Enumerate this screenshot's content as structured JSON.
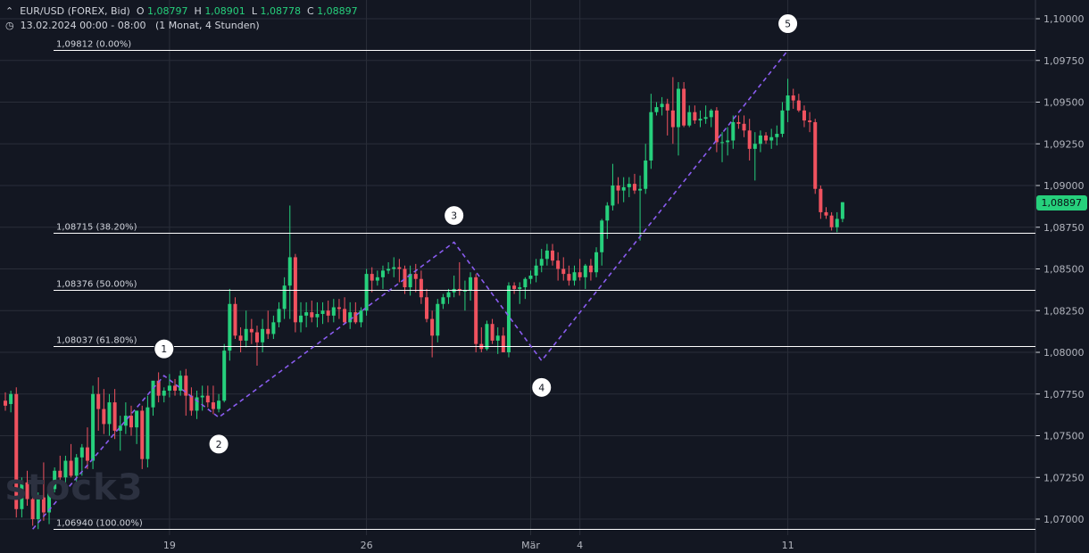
{
  "header": {
    "instrument": "EUR/USD (FOREX, Bid)",
    "o_label": "O",
    "o_value": "1,08797",
    "h_label": "H",
    "h_value": "1,08901",
    "l_label": "L",
    "l_value": "1,08778",
    "c_label": "C",
    "c_value": "1,08897",
    "timerange": "13.02.2024 00:00 - 08:00",
    "period": "(1 Monat, 4 Stunden)"
  },
  "watermark": "stock3",
  "last_price": "1,08897",
  "colors": {
    "up": "#26d07c",
    "down": "#f0525f",
    "wave": "#8a5cf0",
    "bg": "#131722",
    "grid": "#2a2e39"
  },
  "chart_data": {
    "type": "candlestick",
    "ylim": [
      1.06935,
      1.101
    ],
    "y_ticks": [
      1.07,
      1.0725,
      1.075,
      1.0775,
      1.08,
      1.0825,
      1.085,
      1.0875,
      1.09,
      1.0925,
      1.095,
      1.0975,
      1.1
    ],
    "y_tick_labels": [
      "1,07000",
      "1,07250",
      "1,07500",
      "1,07750",
      "1,08000",
      "1,08250",
      "1,08500",
      "1,08750",
      "1,09000",
      "1,09250",
      "1,09500",
      "1,09750",
      "1,10000"
    ],
    "x_ticks": [
      {
        "label": "19",
        "index": 30
      },
      {
        "label": "26",
        "index": 66
      },
      {
        "label": "Mär",
        "index": 96
      },
      {
        "label": "4",
        "index": 105
      },
      {
        "label": "11",
        "index": 143
      }
    ],
    "candles": [
      [
        1.0771,
        1.0776,
        1.0765,
        1.0768
      ],
      [
        1.0769,
        1.0777,
        1.0764,
        1.0775
      ],
      [
        1.0775,
        1.0779,
        1.0701,
        1.0706
      ],
      [
        1.0706,
        1.0725,
        1.0701,
        1.0722
      ],
      [
        1.0722,
        1.0729,
        1.0708,
        1.0712
      ],
      [
        1.0712,
        1.0716,
        1.0696,
        1.07
      ],
      [
        1.07,
        1.0716,
        1.0694,
        1.0713
      ],
      [
        1.0713,
        1.0734,
        1.0699,
        1.0704
      ],
      [
        1.0704,
        1.0719,
        1.0697,
        1.0718
      ],
      [
        1.0718,
        1.0731,
        1.0716,
        1.0729
      ],
      [
        1.0729,
        1.0738,
        1.0723,
        1.0725
      ],
      [
        1.0725,
        1.0738,
        1.0721,
        1.0735
      ],
      [
        1.0735,
        1.0745,
        1.0725,
        1.0726
      ],
      [
        1.0726,
        1.0739,
        1.0721,
        1.0737
      ],
      [
        1.0737,
        1.0745,
        1.0726,
        1.0743
      ],
      [
        1.0743,
        1.0755,
        1.073,
        1.0735
      ],
      [
        1.0735,
        1.078,
        1.073,
        1.0775
      ],
      [
        1.0775,
        1.0785,
        1.0753,
        1.0766
      ],
      [
        1.0766,
        1.0778,
        1.0751,
        1.0757
      ],
      [
        1.0757,
        1.0775,
        1.075,
        1.077
      ],
      [
        1.077,
        1.0778,
        1.0748,
        1.0753
      ],
      [
        1.0753,
        1.0762,
        1.0741,
        1.0756
      ],
      [
        1.0756,
        1.077,
        1.0751,
        1.0762
      ],
      [
        1.0762,
        1.0768,
        1.075,
        1.0755
      ],
      [
        1.0755,
        1.0765,
        1.0745,
        1.0765
      ],
      [
        1.0765,
        1.0768,
        1.073,
        1.0736
      ],
      [
        1.0736,
        1.0774,
        1.0731,
        1.0767
      ],
      [
        1.0767,
        1.0782,
        1.0762,
        1.0783
      ],
      [
        1.0783,
        1.0788,
        1.077,
        1.0774
      ],
      [
        1.0774,
        1.0779,
        1.077,
        1.0777
      ],
      [
        1.0777,
        1.0787,
        1.0773,
        1.078
      ],
      [
        1.078,
        1.0784,
        1.0774,
        1.0777
      ],
      [
        1.0777,
        1.0789,
        1.0774,
        1.0786
      ],
      [
        1.0786,
        1.079,
        1.0762,
        1.0774
      ],
      [
        1.0774,
        1.0779,
        1.0762,
        1.0765
      ],
      [
        1.0765,
        1.0777,
        1.076,
        1.0773
      ],
      [
        1.0773,
        1.078,
        1.0765,
        1.0774
      ],
      [
        1.0774,
        1.078,
        1.0767,
        1.077
      ],
      [
        1.077,
        1.078,
        1.0763,
        1.0766
      ],
      [
        1.0766,
        1.0775,
        1.0764,
        1.0771
      ],
      [
        1.0771,
        1.0805,
        1.077,
        1.0801
      ],
      [
        1.0801,
        1.0838,
        1.0795,
        1.0829
      ],
      [
        1.0829,
        1.0833,
        1.0808,
        1.081
      ],
      [
        1.081,
        1.0815,
        1.08,
        1.0807
      ],
      [
        1.0807,
        1.0825,
        1.0803,
        1.0814
      ],
      [
        1.0814,
        1.082,
        1.0805,
        1.0812
      ],
      [
        1.0812,
        1.0816,
        1.0792,
        1.0806
      ],
      [
        1.0806,
        1.082,
        1.08,
        1.0814
      ],
      [
        1.0814,
        1.0825,
        1.0808,
        1.0811
      ],
      [
        1.0811,
        1.0822,
        1.0808,
        1.0818
      ],
      [
        1.0818,
        1.083,
        1.0815,
        1.0826
      ],
      [
        1.0826,
        1.0845,
        1.082,
        1.084
      ],
      [
        1.084,
        1.0888,
        1.082,
        1.0857
      ],
      [
        1.0857,
        1.0859,
        1.0812,
        1.0818
      ],
      [
        1.0818,
        1.083,
        1.0812,
        1.0822
      ],
      [
        1.0822,
        1.083,
        1.0815,
        1.0824
      ],
      [
        1.0824,
        1.0831,
        1.0818,
        1.0821
      ],
      [
        1.0821,
        1.083,
        1.0815,
        1.0823
      ],
      [
        1.0823,
        1.083,
        1.0817,
        1.0825
      ],
      [
        1.0825,
        1.0831,
        1.0818,
        1.0822
      ],
      [
        1.0822,
        1.0832,
        1.0818,
        1.0827
      ],
      [
        1.0827,
        1.0832,
        1.082,
        1.0826
      ],
      [
        1.0826,
        1.0833,
        1.0817,
        1.0818
      ],
      [
        1.0818,
        1.083,
        1.0814,
        1.0824
      ],
      [
        1.0824,
        1.083,
        1.0817,
        1.0818
      ],
      [
        1.0818,
        1.0827,
        1.0815,
        1.0825
      ],
      [
        1.0825,
        1.085,
        1.0822,
        1.0847
      ],
      [
        1.0847,
        1.0851,
        1.0836,
        1.0843
      ],
      [
        1.0843,
        1.0849,
        1.084,
        1.0845
      ],
      [
        1.0845,
        1.0852,
        1.0838,
        1.0849
      ],
      [
        1.0849,
        1.0854,
        1.0847,
        1.085
      ],
      [
        1.085,
        1.0857,
        1.0845,
        1.0851
      ],
      [
        1.0851,
        1.0856,
        1.0842,
        1.085
      ],
      [
        1.085,
        1.0852,
        1.0835,
        1.0839
      ],
      [
        1.0839,
        1.0852,
        1.0834,
        1.0847
      ],
      [
        1.0847,
        1.0853,
        1.0836,
        1.0844
      ],
      [
        1.0844,
        1.0849,
        1.0829,
        1.0833
      ],
      [
        1.0833,
        1.0838,
        1.0818,
        1.082
      ],
      [
        1.082,
        1.0825,
        1.0797,
        1.081
      ],
      [
        1.081,
        1.0832,
        1.0806,
        1.0829
      ],
      [
        1.0829,
        1.0835,
        1.0826,
        1.0833
      ],
      [
        1.0833,
        1.0838,
        1.0829,
        1.0836
      ],
      [
        1.0836,
        1.0846,
        1.0833,
        1.0838
      ],
      [
        1.0838,
        1.0854,
        1.0834,
        1.0837
      ],
      [
        1.0837,
        1.0843,
        1.0825,
        1.0837
      ],
      [
        1.0837,
        1.0848,
        1.0831,
        1.0845
      ],
      [
        1.0845,
        1.0847,
        1.08,
        1.0805
      ],
      [
        1.0805,
        1.0815,
        1.08,
        1.0802
      ],
      [
        1.0802,
        1.0819,
        1.0801,
        1.0817
      ],
      [
        1.0817,
        1.082,
        1.0805,
        1.0807
      ],
      [
        1.0807,
        1.0815,
        1.0799,
        1.081
      ],
      [
        1.081,
        1.0815,
        1.08,
        1.08
      ],
      [
        1.08,
        1.0842,
        1.0797,
        1.084
      ],
      [
        1.084,
        1.0842,
        1.0835,
        1.0838
      ],
      [
        1.0838,
        1.0842,
        1.0829,
        1.0839
      ],
      [
        1.0839,
        1.0845,
        1.0832,
        1.0844
      ],
      [
        1.0844,
        1.0849,
        1.0841,
        1.0846
      ],
      [
        1.0846,
        1.0856,
        1.0842,
        1.0852
      ],
      [
        1.0852,
        1.0862,
        1.0848,
        1.0856
      ],
      [
        1.0856,
        1.0865,
        1.0852,
        1.0861
      ],
      [
        1.0861,
        1.0865,
        1.0852,
        1.0855
      ],
      [
        1.0855,
        1.086,
        1.0843,
        1.085
      ],
      [
        1.085,
        1.0857,
        1.0843,
        1.0847
      ],
      [
        1.0847,
        1.0852,
        1.084,
        1.0843
      ],
      [
        1.0843,
        1.0852,
        1.084,
        1.0848
      ],
      [
        1.0848,
        1.0856,
        1.0843,
        1.0845
      ],
      [
        1.0845,
        1.0853,
        1.0838,
        1.0852
      ],
      [
        1.0852,
        1.0856,
        1.0843,
        1.0848
      ],
      [
        1.0848,
        1.0863,
        1.0845,
        1.086
      ],
      [
        1.086,
        1.088,
        1.0852,
        1.0879
      ],
      [
        1.0879,
        1.089,
        1.0868,
        1.0888
      ],
      [
        1.0888,
        1.0913,
        1.0885,
        1.09
      ],
      [
        1.09,
        1.0905,
        1.0889,
        1.0897
      ],
      [
        1.0897,
        1.0905,
        1.089,
        1.0899
      ],
      [
        1.0899,
        1.0905,
        1.0893,
        1.0901
      ],
      [
        1.0901,
        1.0907,
        1.0895,
        1.0897
      ],
      [
        1.0897,
        1.0906,
        1.0867,
        1.0898
      ],
      [
        1.0898,
        1.0925,
        1.0895,
        1.0915
      ],
      [
        1.0915,
        1.0955,
        1.091,
        1.0944
      ],
      [
        1.0944,
        1.095,
        1.0942,
        1.0947
      ],
      [
        1.0947,
        1.0953,
        1.0942,
        1.0949
      ],
      [
        1.0949,
        1.0952,
        1.093,
        1.0945
      ],
      [
        1.0945,
        1.0965,
        1.0925,
        1.0935
      ],
      [
        1.0935,
        1.0962,
        1.0918,
        1.0958
      ],
      [
        1.0958,
        1.0962,
        1.0935,
        1.0936
      ],
      [
        1.0936,
        1.0948,
        1.0935,
        1.0944
      ],
      [
        1.0944,
        1.0948,
        1.0937,
        1.0939
      ],
      [
        1.0939,
        1.0945,
        1.0935,
        1.094
      ],
      [
        1.094,
        1.0948,
        1.0937,
        1.0941
      ],
      [
        1.0941,
        1.0946,
        1.0935,
        1.0945
      ],
      [
        1.0945,
        1.0947,
        1.092,
        1.0926
      ],
      [
        1.0926,
        1.0932,
        1.0914,
        1.0926
      ],
      [
        1.0926,
        1.0935,
        1.0918,
        1.0927
      ],
      [
        1.0927,
        1.0942,
        1.0922,
        1.0938
      ],
      [
        1.0938,
        1.0942,
        1.0934,
        1.0937
      ],
      [
        1.0937,
        1.0942,
        1.0929,
        1.0933
      ],
      [
        1.0933,
        1.094,
        1.0915,
        1.0922
      ],
      [
        1.0922,
        1.0932,
        1.0903,
        1.0925
      ],
      [
        1.0925,
        1.0933,
        1.092,
        1.093
      ],
      [
        1.093,
        1.0932,
        1.0925,
        1.0927
      ],
      [
        1.0927,
        1.0934,
        1.0922,
        1.0929
      ],
      [
        1.0929,
        1.0936,
        1.0924,
        1.0931
      ],
      [
        1.0931,
        1.095,
        1.0929,
        1.0945
      ],
      [
        1.0945,
        1.0964,
        1.0938,
        1.0954
      ],
      [
        1.0954,
        1.0958,
        1.0946,
        1.0951
      ],
      [
        1.0951,
        1.0955,
        1.0944,
        1.0945
      ],
      [
        1.0945,
        1.0948,
        1.0935,
        1.0939
      ],
      [
        1.0939,
        1.0944,
        1.0932,
        1.0938
      ],
      [
        1.0938,
        1.094,
        1.0895,
        1.0898
      ],
      [
        1.0898,
        1.09,
        1.088,
        1.0884
      ],
      [
        1.0884,
        1.0887,
        1.088,
        1.0882
      ],
      [
        1.0882,
        1.0884,
        1.0873,
        1.0875
      ],
      [
        1.0875,
        1.0884,
        1.0872,
        1.088
      ],
      [
        1.088,
        1.089,
        1.0878,
        1.089
      ]
    ],
    "fibonacci": [
      {
        "price": 1.09812,
        "label": "1,09812 (0.00%)"
      },
      {
        "price": 1.08715,
        "label": "1,08715 (38.20%)"
      },
      {
        "price": 1.08376,
        "label": "1,08376 (50.00%)"
      },
      {
        "price": 1.08037,
        "label": "1,08037 (61.80%)"
      },
      {
        "price": 1.0694,
        "label": "1,06940 (100.00%)"
      }
    ],
    "waves": [
      {
        "label": "",
        "index": 5,
        "price": 1.0694
      },
      {
        "label": "1",
        "index": 29,
        "price": 1.0786
      },
      {
        "label": "2",
        "index": 39,
        "price": 1.0761
      },
      {
        "label": "3",
        "index": 82,
        "price": 1.0866
      },
      {
        "label": "4",
        "index": 98,
        "price": 1.0795
      },
      {
        "label": "5",
        "index": 143,
        "price": 1.0981
      }
    ]
  }
}
